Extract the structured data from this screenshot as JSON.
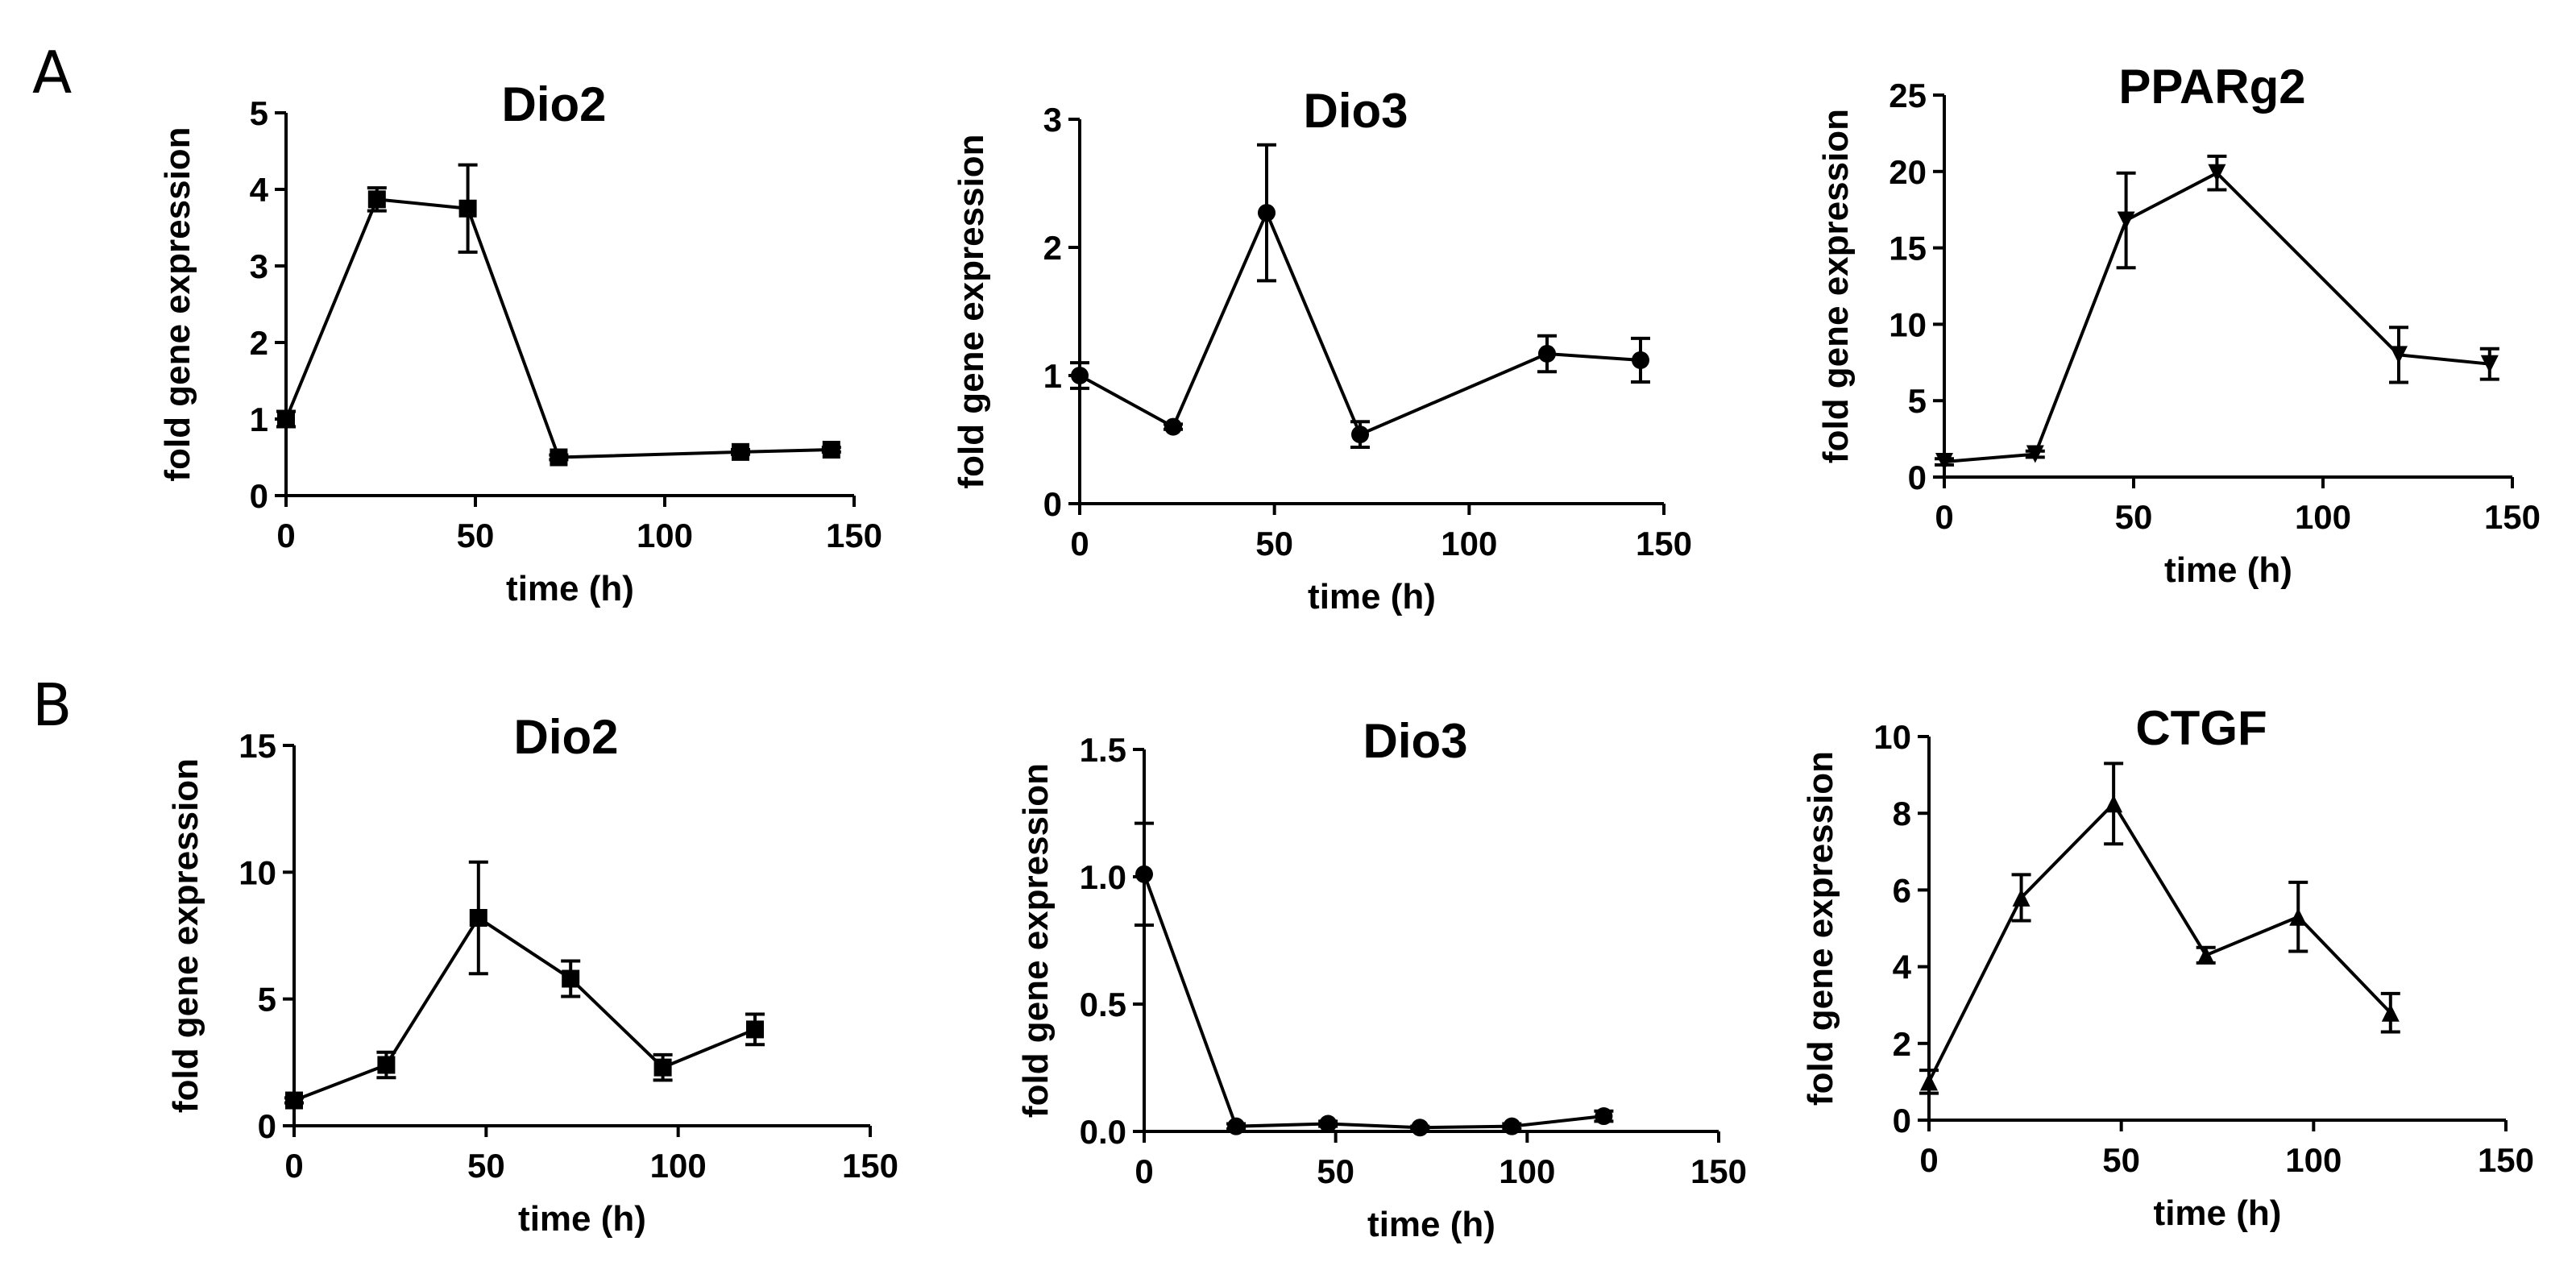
{
  "panels": [
    {
      "label": "A"
    },
    {
      "label": "B"
    }
  ],
  "chart_data": [
    {
      "type": "line",
      "panel": "A",
      "title": "Dio2",
      "xlabel": "time (h)",
      "ylabel": "fold gene expression",
      "xlim": [
        0,
        150
      ],
      "ylim": [
        0,
        5
      ],
      "xticks": [
        0,
        50,
        100,
        150
      ],
      "yticks": [
        0,
        1,
        2,
        3,
        4,
        5
      ],
      "yticklabels": [
        "0",
        "1",
        "2",
        "3",
        "4",
        "5"
      ],
      "marker": "square",
      "x": [
        0,
        24,
        48,
        72,
        120,
        144
      ],
      "values": [
        1.0,
        3.87,
        3.75,
        0.5,
        0.57,
        0.6
      ],
      "errors": [
        0.1,
        0.15,
        0.57,
        0.03,
        0.03,
        0.03
      ]
    },
    {
      "type": "line",
      "panel": "A",
      "title": "Dio3",
      "xlabel": "time (h)",
      "ylabel": "fold gene expression",
      "xlim": [
        0,
        150
      ],
      "ylim": [
        0,
        3
      ],
      "xticks": [
        0,
        50,
        100,
        150
      ],
      "yticks": [
        0,
        1,
        2,
        3
      ],
      "yticklabels": [
        "0",
        "1",
        "2",
        "3"
      ],
      "marker": "circle",
      "x": [
        0,
        24,
        48,
        72,
        120,
        144
      ],
      "values": [
        1.0,
        0.6,
        2.27,
        0.54,
        1.17,
        1.12
      ],
      "errors": [
        0.1,
        0.02,
        0.53,
        0.1,
        0.14,
        0.17
      ]
    },
    {
      "type": "line",
      "panel": "A",
      "title": "PPARg2",
      "xlabel": "time (h)",
      "ylabel": "fold gene expression",
      "xlim": [
        0,
        150
      ],
      "ylim": [
        0,
        25
      ],
      "xticks": [
        0,
        50,
        100,
        150
      ],
      "yticks": [
        0,
        5,
        10,
        15,
        20,
        25
      ],
      "yticklabels": [
        "0",
        "5",
        "10",
        "15",
        "20",
        "25"
      ],
      "marker": "triangle-down",
      "x": [
        0,
        24,
        48,
        72,
        120,
        144
      ],
      "values": [
        1.0,
        1.5,
        16.8,
        19.9,
        8.0,
        7.4
      ],
      "errors": [
        0.2,
        0.2,
        3.1,
        1.1,
        1.8,
        1.0
      ]
    },
    {
      "type": "line",
      "panel": "B",
      "title": "Dio2",
      "xlabel": "time (h)",
      "ylabel": "fold gene expression",
      "xlim": [
        0,
        150
      ],
      "ylim": [
        0,
        15
      ],
      "xticks": [
        0,
        50,
        100,
        150
      ],
      "yticks": [
        0,
        5,
        10,
        15
      ],
      "yticklabels": [
        "0",
        "5",
        "10",
        "15"
      ],
      "marker": "square",
      "x": [
        0,
        24,
        48,
        72,
        96,
        120
      ],
      "values": [
        1.0,
        2.4,
        8.2,
        5.8,
        2.3,
        3.8
      ],
      "errors": [
        0.1,
        0.5,
        2.2,
        0.7,
        0.5,
        0.6
      ]
    },
    {
      "type": "line",
      "panel": "B",
      "title": "Dio3",
      "xlabel": "time (h)",
      "ylabel": "fold gene expression",
      "xlim": [
        0,
        150
      ],
      "ylim": [
        0,
        1.5
      ],
      "xticks": [
        0,
        50,
        100,
        150
      ],
      "yticks": [
        0,
        0.5,
        1.0,
        1.5
      ],
      "yticklabels": [
        "0.0",
        "0.5",
        "1.0",
        "1.5"
      ],
      "marker": "circle",
      "x": [
        0,
        24,
        48,
        72,
        96,
        120
      ],
      "values": [
        1.01,
        0.02,
        0.03,
        0.015,
        0.02,
        0.06
      ],
      "errors": [
        0.2,
        0.01,
        0.01,
        0.005,
        0.01,
        0.02
      ]
    },
    {
      "type": "line",
      "panel": "B",
      "title": "CTGF",
      "xlabel": "time (h)",
      "ylabel": "fold gene expression",
      "xlim": [
        0,
        150
      ],
      "ylim": [
        0,
        10
      ],
      "xticks": [
        0,
        50,
        100,
        150
      ],
      "yticks": [
        0,
        2,
        4,
        6,
        8,
        10
      ],
      "yticklabels": [
        "0",
        "2",
        "4",
        "6",
        "8",
        "10"
      ],
      "marker": "triangle-up",
      "x": [
        0,
        24,
        48,
        72,
        96,
        120
      ],
      "values": [
        1.0,
        5.8,
        8.25,
        4.3,
        5.3,
        2.8
      ],
      "errors": [
        0.3,
        0.6,
        1.05,
        0.2,
        0.9,
        0.5
      ]
    }
  ]
}
